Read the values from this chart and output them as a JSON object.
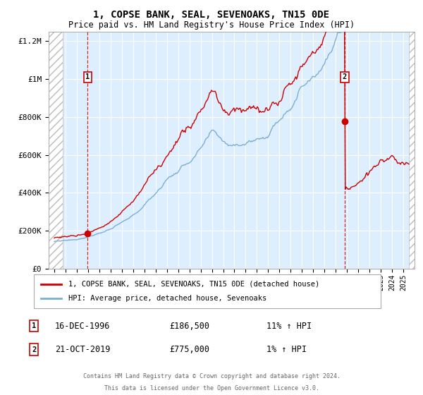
{
  "title": "1, COPSE BANK, SEAL, SEVENOAKS, TN15 0DE",
  "subtitle": "Price paid vs. HM Land Registry's House Price Index (HPI)",
  "background_color": "#ffffff",
  "plot_bg_color": "#ddeeff",
  "grid_color": "#ffffff",
  "line1_color": "#cc0000",
  "line2_color": "#7aafd4",
  "sale1_year": 1996.96,
  "sale1_price": 186500,
  "sale1_label": "1",
  "sale1_date": "16-DEC-1996",
  "sale1_pct": "11% ↑ HPI",
  "sale2_year": 2019.79,
  "sale2_price": 775000,
  "sale2_label": "2",
  "sale2_date": "21-OCT-2019",
  "sale2_pct": "1% ↑ HPI",
  "xmin": 1993.5,
  "xmax": 2026.0,
  "ymin": 0,
  "ymax": 1250000,
  "yticks": [
    0,
    200000,
    400000,
    600000,
    800000,
    1000000,
    1200000
  ],
  "ytick_labels": [
    "£0",
    "£200K",
    "£400K",
    "£600K",
    "£800K",
    "£1M",
    "£1.2M"
  ],
  "legend1": "1, COPSE BANK, SEAL, SEVENOAKS, TN15 0DE (detached house)",
  "legend2": "HPI: Average price, detached house, Sevenoaks",
  "footnote1": "Contains HM Land Registry data © Crown copyright and database right 2024.",
  "footnote2": "This data is licensed under the Open Government Licence v3.0."
}
